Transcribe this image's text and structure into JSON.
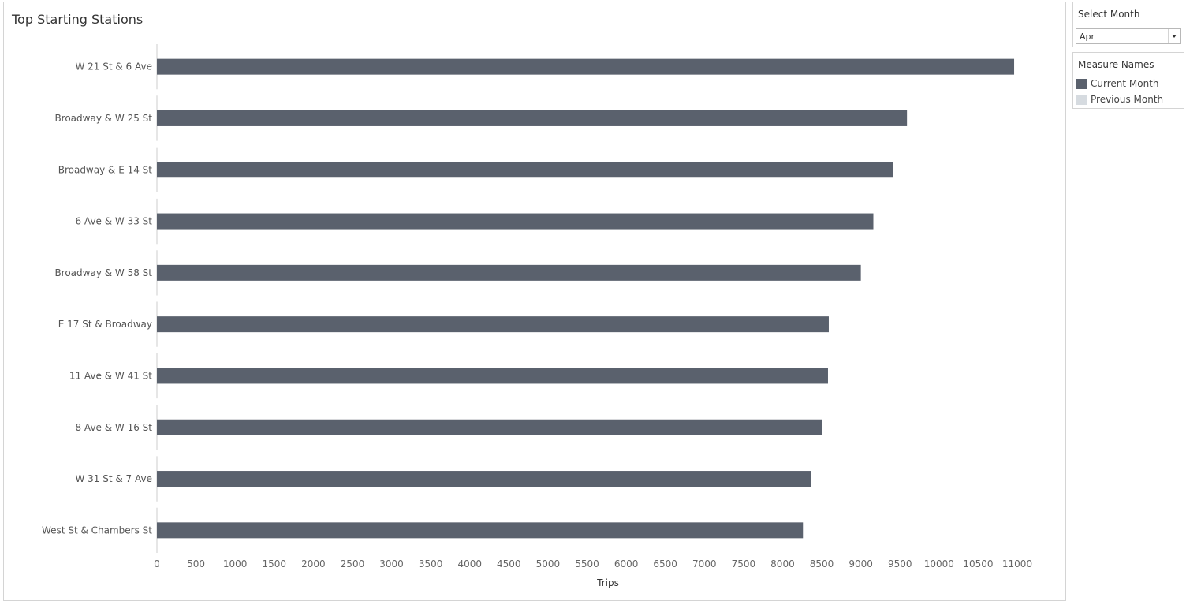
{
  "chart_data": {
    "type": "bar",
    "orientation": "horizontal",
    "title": "Top Starting Stations",
    "xlabel": "Trips",
    "ylabel": "",
    "xlim": [
      0,
      11000
    ],
    "ticks": [
      "0",
      "500",
      "1000",
      "1500",
      "2000",
      "2500",
      "3000",
      "3500",
      "4000",
      "4500",
      "5000",
      "5500",
      "6000",
      "6500",
      "7000",
      "7500",
      "8000",
      "8500",
      "9000",
      "9500",
      "10000",
      "10500",
      "11000"
    ],
    "categories": [
      "W 21 St & 6 Ave",
      "Broadway & W 25 St",
      "Broadway & E 14 St",
      "6 Ave & W 33 St",
      "Broadway & W 58 St",
      "E 17 St & Broadway",
      "11 Ave & W 41 St",
      "8 Ave & W 16 St",
      "W 31 St & 7 Ave",
      "West St & Chambers St"
    ],
    "series": [
      {
        "name": "Current Month",
        "values": [
          10960,
          9590,
          9410,
          9160,
          9000,
          8590,
          8580,
          8500,
          8360,
          8260
        ]
      }
    ],
    "grid": false,
    "legend": "right"
  },
  "filter": {
    "title": "Select Month",
    "selected": "Apr"
  },
  "legend": {
    "title": "Measure Names",
    "items": [
      {
        "label": "Current Month",
        "color": "#5a616d"
      },
      {
        "label": "Previous Month",
        "color": "#d6dbe0"
      }
    ]
  },
  "colors": {
    "bar": "#5a616d",
    "axis": "#cccccc"
  }
}
